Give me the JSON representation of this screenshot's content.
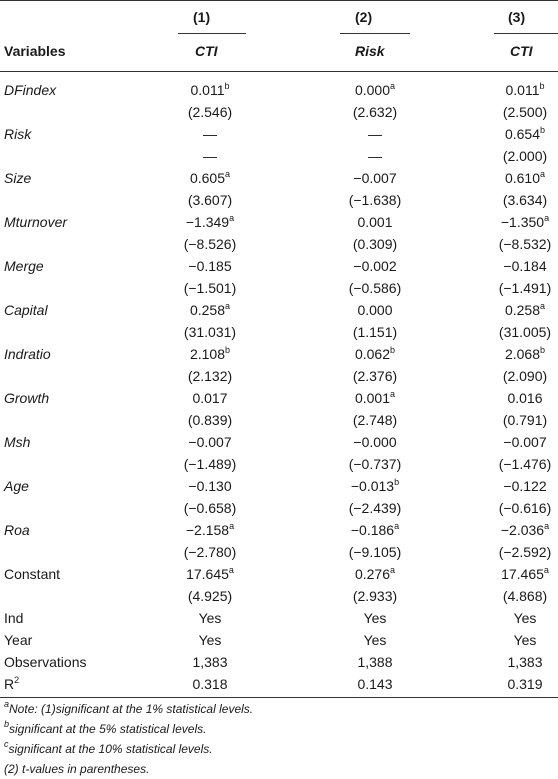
{
  "header": {
    "col_numbers": [
      "(1)",
      "(2)",
      "(3)"
    ],
    "variables_label": "Variables",
    "col_titles": [
      "CTI",
      "Risk",
      "CTI"
    ]
  },
  "rows": [
    {
      "label": "DFindex",
      "italic": true,
      "coef": [
        {
          "v": "0.011",
          "s": "b"
        },
        {
          "v": "0.000",
          "s": "a"
        },
        {
          "v": "0.011",
          "s": "b"
        }
      ],
      "t": [
        "(2.546)",
        "(2.632)",
        "(2.500)"
      ]
    },
    {
      "label": "Risk",
      "italic": true,
      "coef": [
        {
          "v": "—",
          "s": ""
        },
        {
          "v": "—",
          "s": ""
        },
        {
          "v": "0.654",
          "s": "b"
        }
      ],
      "t": [
        "—",
        "—",
        "(2.000)"
      ]
    },
    {
      "label": "Size",
      "italic": true,
      "coef": [
        {
          "v": "0.605",
          "s": "a"
        },
        {
          "v": "−0.007",
          "s": ""
        },
        {
          "v": "0.610",
          "s": "a"
        }
      ],
      "t": [
        "(3.607)",
        "(−1.638)",
        "(3.634)"
      ]
    },
    {
      "label": "Mturnover",
      "italic": true,
      "coef": [
        {
          "v": "−1.349",
          "s": "a"
        },
        {
          "v": "0.001",
          "s": ""
        },
        {
          "v": "−1.350",
          "s": "a"
        }
      ],
      "t": [
        "(−8.526)",
        "(0.309)",
        "(−8.532)"
      ]
    },
    {
      "label": "Merge",
      "italic": true,
      "coef": [
        {
          "v": "−0.185",
          "s": ""
        },
        {
          "v": "−0.002",
          "s": ""
        },
        {
          "v": "−0.184",
          "s": ""
        }
      ],
      "t": [
        "(−1.501)",
        "(−0.586)",
        "(−1.491)"
      ]
    },
    {
      "label": "Capital",
      "italic": true,
      "coef": [
        {
          "v": "0.258",
          "s": "a"
        },
        {
          "v": "0.000",
          "s": ""
        },
        {
          "v": "0.258",
          "s": "a"
        }
      ],
      "t": [
        "(31.031)",
        "(1.151)",
        "(31.005)"
      ]
    },
    {
      "label": "Indratio",
      "italic": true,
      "coef": [
        {
          "v": "2.108",
          "s": "b"
        },
        {
          "v": "0.062",
          "s": "b"
        },
        {
          "v": "2.068",
          "s": "b"
        }
      ],
      "t": [
        "(2.132)",
        "(2.376)",
        "(2.090)"
      ]
    },
    {
      "label": "Growth",
      "italic": true,
      "coef": [
        {
          "v": "0.017",
          "s": ""
        },
        {
          "v": "0.001",
          "s": "a"
        },
        {
          "v": "0.016",
          "s": ""
        }
      ],
      "t": [
        "(0.839)",
        "(2.748)",
        "(0.791)"
      ]
    },
    {
      "label": "Msh",
      "italic": true,
      "coef": [
        {
          "v": "−0.007",
          "s": ""
        },
        {
          "v": "−0.000",
          "s": ""
        },
        {
          "v": "−0.007",
          "s": ""
        }
      ],
      "t": [
        "(−1.489)",
        "(−0.737)",
        "(−1.476)"
      ]
    },
    {
      "label": "Age",
      "italic": true,
      "coef": [
        {
          "v": "−0.130",
          "s": ""
        },
        {
          "v": "−0.013",
          "s": "b"
        },
        {
          "v": "−0.122",
          "s": ""
        }
      ],
      "t": [
        "(−0.658)",
        "(−2.439)",
        "(−0.616)"
      ]
    },
    {
      "label": "Roa",
      "italic": true,
      "coef": [
        {
          "v": "−2.158",
          "s": "a"
        },
        {
          "v": "−0.186",
          "s": "a"
        },
        {
          "v": "−2.036",
          "s": "a"
        }
      ],
      "t": [
        "(−2.780)",
        "(−9.105)",
        "(−2.592)"
      ]
    },
    {
      "label": "Constant",
      "italic": false,
      "coef": [
        {
          "v": "17.645",
          "s": "a"
        },
        {
          "v": "0.276",
          "s": "a"
        },
        {
          "v": "17.465",
          "s": "a"
        }
      ],
      "t": [
        "(4.925)",
        "(2.933)",
        "(4.868)"
      ]
    }
  ],
  "summary": [
    {
      "label": "Ind",
      "vals": [
        "Yes",
        "Yes",
        "Yes"
      ]
    },
    {
      "label": "Year",
      "vals": [
        "Yes",
        "Yes",
        "Yes"
      ]
    },
    {
      "label": "Observations",
      "vals": [
        "1,383",
        "1,388",
        "1,383"
      ]
    },
    {
      "label": "R",
      "label_sup": "2",
      "vals": [
        "0.318",
        "0.143",
        "0.319"
      ]
    }
  ],
  "notes": [
    {
      "sup": "a",
      "text": "Note: (1)significant at the 1% statistical levels."
    },
    {
      "sup": "b",
      "text": "significant at the 5% statistical levels."
    },
    {
      "sup": "c",
      "text": "significant at the 10% statistical levels."
    },
    {
      "sup": "",
      "text": "(2) t-values in parentheses."
    }
  ]
}
